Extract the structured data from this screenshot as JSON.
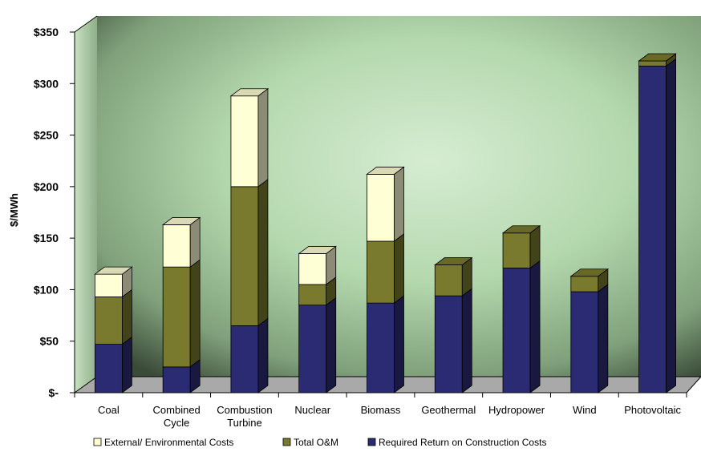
{
  "chart_data": {
    "type": "bar",
    "stacked": true,
    "ylabel": "$/MWh",
    "ylim": [
      0,
      350
    ],
    "yticks": [
      {
        "value": 0,
        "label": "$-"
      },
      {
        "value": 50,
        "label": "$50"
      },
      {
        "value": 100,
        "label": "$100"
      },
      {
        "value": 150,
        "label": "$150"
      },
      {
        "value": 200,
        "label": "$200"
      },
      {
        "value": 250,
        "label": "$250"
      },
      {
        "value": 300,
        "label": "$300"
      },
      {
        "value": 350,
        "label": "$350"
      }
    ],
    "categories": [
      [
        "Coal"
      ],
      [
        "Combined",
        "Cycle"
      ],
      [
        "Combustion",
        "Turbine"
      ],
      [
        "Nuclear"
      ],
      [
        "Biomass"
      ],
      [
        "Geothermal"
      ],
      [
        "Hydropower"
      ],
      [
        "Wind"
      ],
      [
        "Photovoltaic"
      ]
    ],
    "series": [
      {
        "name": "Required Return on Construction Costs",
        "color": "#2b2b74",
        "values": [
          47,
          25,
          65,
          85,
          87,
          94,
          121,
          98,
          317
        ]
      },
      {
        "name": "Total O&M",
        "color": "#7a7a2e",
        "values": [
          46,
          97,
          135,
          20,
          60,
          30,
          34,
          15,
          5
        ]
      },
      {
        "name": "External/ Environmental Costs",
        "color": "#ffffd6",
        "values": [
          22,
          41,
          88,
          30,
          65,
          0,
          0,
          0,
          0
        ]
      }
    ],
    "legend": {
      "placement": "bottom",
      "order": [
        2,
        1,
        0
      ]
    }
  }
}
